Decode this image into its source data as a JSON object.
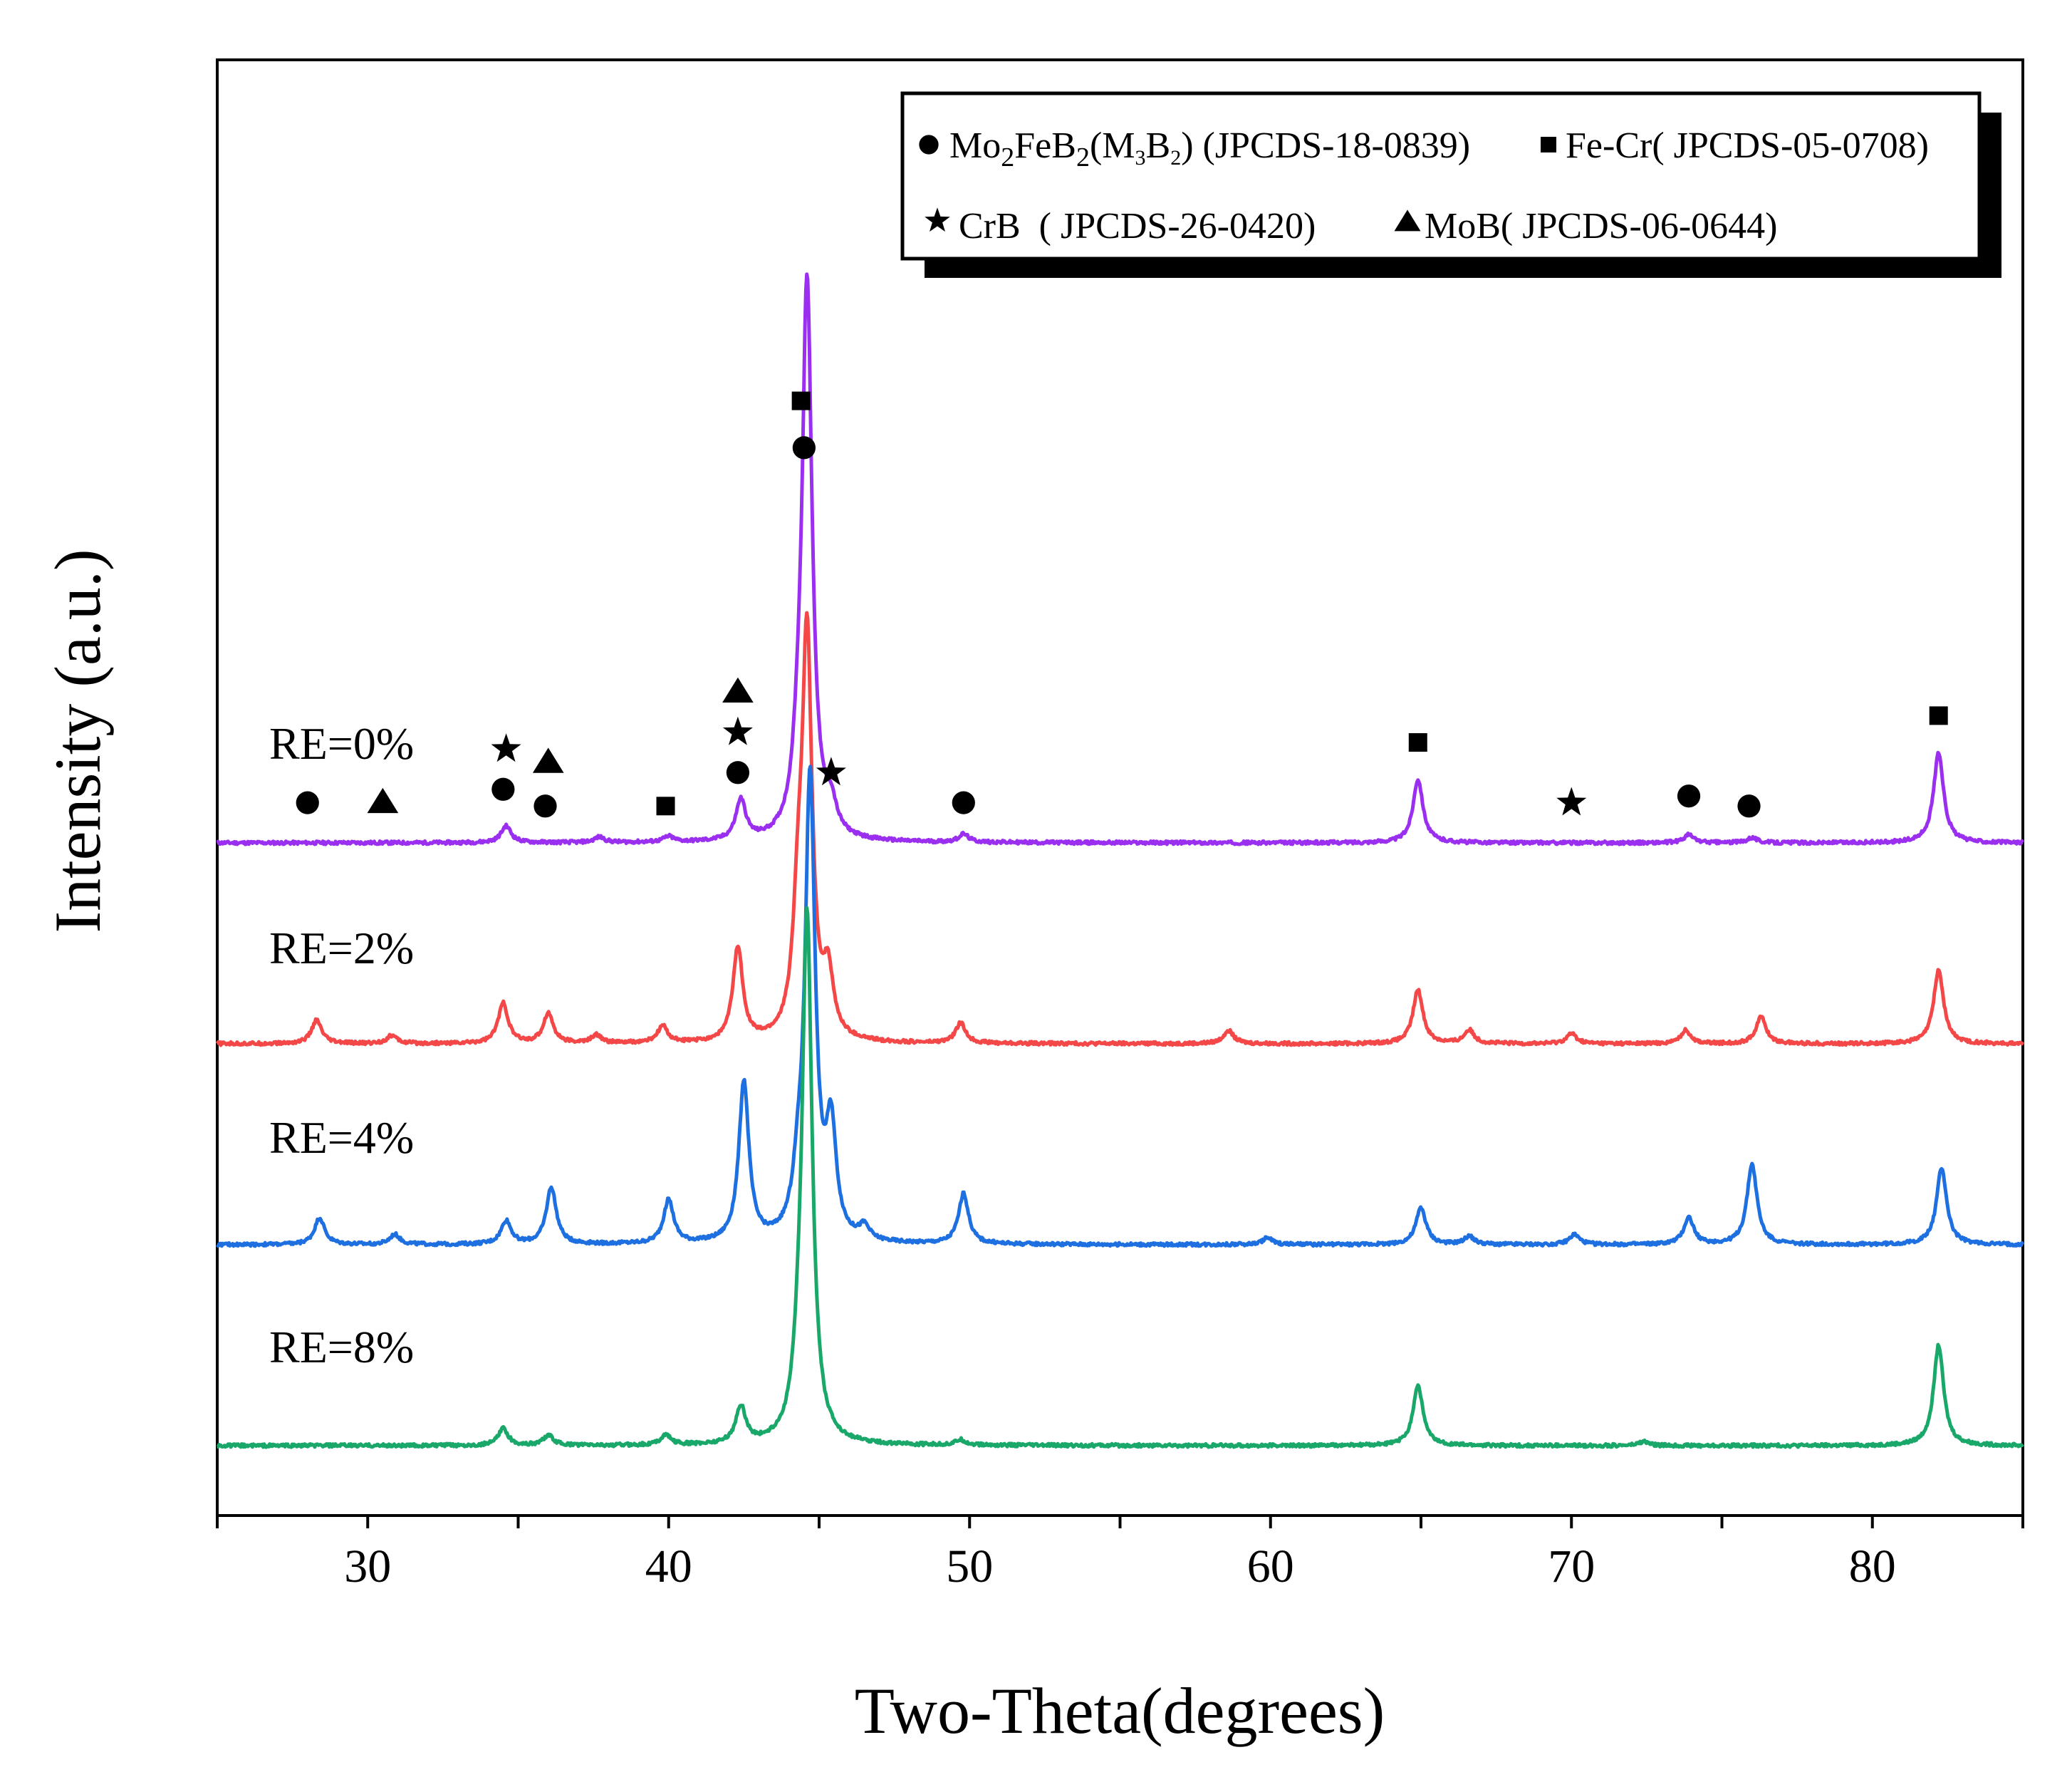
{
  "chart_data": {
    "type": "line",
    "xlabel": "Two-Theta(degrees)",
    "ylabel": "Intensity (a.u.)",
    "xlim": [
      25,
      85
    ],
    "xticks": [
      30,
      40,
      50,
      60,
      70,
      80
    ],
    "series": [
      {
        "name": "RE=0%",
        "label": "RE=0%",
        "color": "#9b2ff0",
        "baseline": 3,
        "peaks": [
          [
            34.6,
            0.25
          ],
          [
            37.7,
            0.08
          ],
          [
            40.0,
            0.08
          ],
          [
            42.4,
            0.6
          ],
          [
            44.3,
            0.6
          ],
          [
            44.6,
            8.3
          ],
          [
            45.4,
            0.4
          ],
          [
            49.8,
            0.12
          ],
          [
            64.9,
            0.95
          ],
          [
            73.9,
            0.12
          ],
          [
            76.0,
            0.08
          ],
          [
            82.2,
            1.35
          ]
        ]
      },
      {
        "name": "RE=2%",
        "label": "RE=2%",
        "color": "#f44848",
        "baseline": 0,
        "peaks": [
          [
            28.3,
            0.35
          ],
          [
            30.8,
            0.12
          ],
          [
            34.5,
            0.6
          ],
          [
            36.0,
            0.45
          ],
          [
            37.6,
            0.12
          ],
          [
            39.8,
            0.25
          ],
          [
            42.3,
            1.4
          ],
          [
            44.3,
            1.5
          ],
          [
            44.6,
            5.9
          ],
          [
            45.3,
            0.9
          ],
          [
            49.7,
            0.3
          ],
          [
            58.6,
            0.2
          ],
          [
            64.9,
            0.8
          ],
          [
            66.6,
            0.2
          ],
          [
            70.0,
            0.15
          ],
          [
            73.8,
            0.2
          ],
          [
            76.3,
            0.4
          ],
          [
            82.2,
            1.1
          ]
        ]
      },
      {
        "name": "RE=4%",
        "label": "RE=4%",
        "color": "#1e6fe0",
        "baseline": -3,
        "peaks": [
          [
            28.4,
            0.4
          ],
          [
            30.9,
            0.15
          ],
          [
            34.6,
            0.35
          ],
          [
            36.1,
            0.85
          ],
          [
            40.0,
            0.65
          ],
          [
            42.5,
            2.4
          ],
          [
            44.3,
            0.6
          ],
          [
            44.7,
            6.9
          ],
          [
            45.4,
            1.6
          ],
          [
            46.5,
            0.2
          ],
          [
            49.8,
            0.75
          ],
          [
            59.9,
            0.1
          ],
          [
            65.0,
            0.55
          ],
          [
            66.6,
            0.12
          ],
          [
            70.1,
            0.15
          ],
          [
            73.9,
            0.4
          ],
          [
            76.0,
            1.2
          ],
          [
            82.3,
            1.15
          ]
        ]
      },
      {
        "name": "RE=8%",
        "label": "RE=8%",
        "color": "#1aa86a",
        "baseline": -6,
        "peaks": [
          [
            34.5,
            0.25
          ],
          [
            36.0,
            0.15
          ],
          [
            39.9,
            0.15
          ],
          [
            42.4,
            0.55
          ],
          [
            44.3,
            0.5
          ],
          [
            44.6,
            7.9
          ],
          [
            49.7,
            0.08
          ],
          [
            64.9,
            0.9
          ],
          [
            72.4,
            0.06
          ],
          [
            82.2,
            1.5
          ]
        ]
      }
    ],
    "phase_markers": [
      {
        "symbol": "circle",
        "positions": [
          [
            28.0,
            3.6
          ],
          [
            34.5,
            3.8
          ],
          [
            35.9,
            3.55
          ],
          [
            42.3,
            4.05
          ],
          [
            44.5,
            8.9
          ],
          [
            49.8,
            3.6
          ],
          [
            73.9,
            3.7
          ],
          [
            75.9,
            3.55
          ]
        ]
      },
      {
        "symbol": "square",
        "positions": [
          [
            39.9,
            3.55
          ],
          [
            44.4,
            9.6
          ],
          [
            64.9,
            4.5
          ],
          [
            82.2,
            4.9
          ]
        ]
      },
      {
        "symbol": "star",
        "positions": [
          [
            34.6,
            4.4
          ],
          [
            42.3,
            4.65
          ],
          [
            45.4,
            4.05
          ],
          [
            70.0,
            3.6
          ]
        ]
      },
      {
        "symbol": "triangle",
        "positions": [
          [
            30.5,
            3.6
          ],
          [
            36.0,
            4.2
          ],
          [
            42.3,
            5.25
          ]
        ]
      }
    ],
    "legend": {
      "position": "top-right",
      "entries": [
        {
          "symbol": "circle",
          "label": "Mo2FeB2(M3B2) (JPCDS-18-0839)"
        },
        {
          "symbol": "square",
          "label": "Fe-Cr( JPCDS-05-0708)"
        },
        {
          "symbol": "star",
          "label": "CrB  ( JPCDS-26-0420)"
        },
        {
          "symbol": "triangle",
          "label": "MoB( JPCDS-06-0644)"
        }
      ]
    }
  }
}
